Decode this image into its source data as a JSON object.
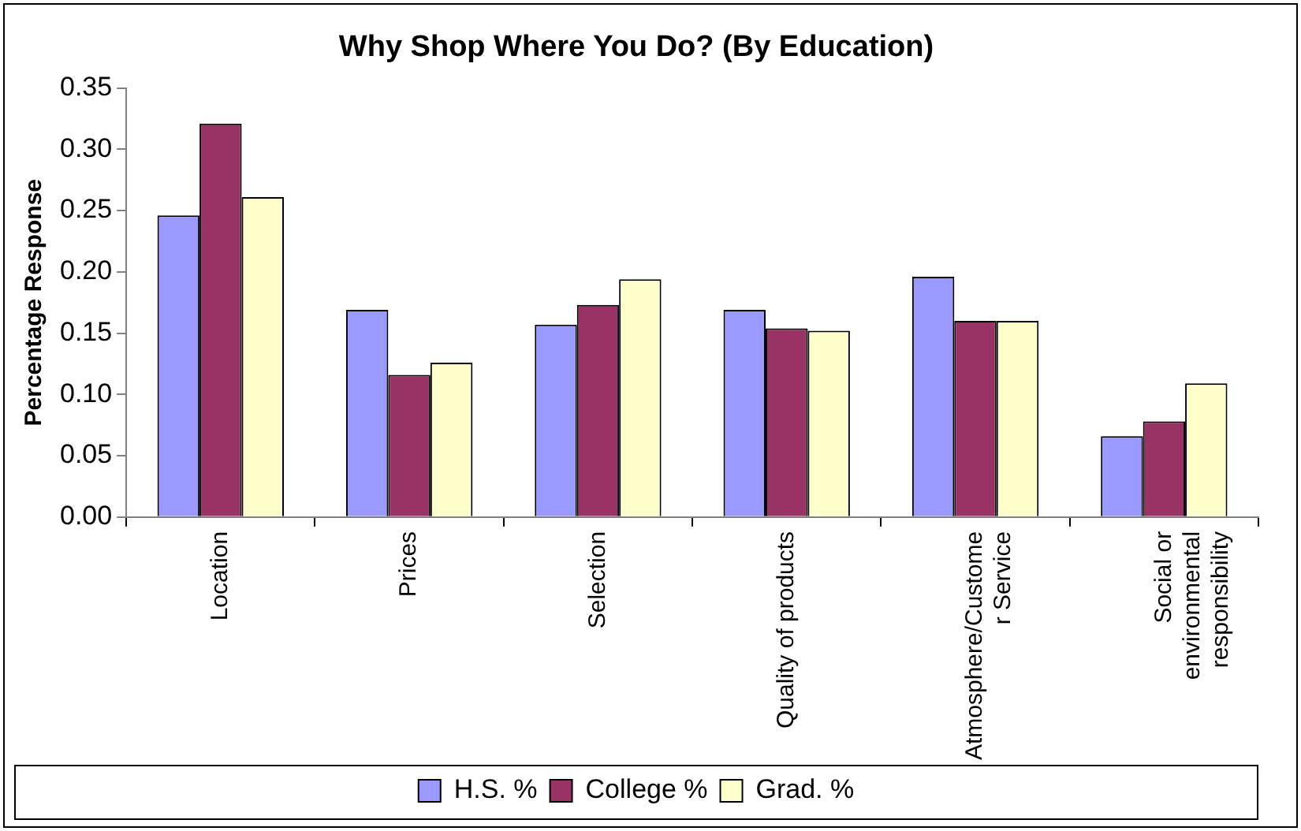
{
  "chart_data": {
    "type": "bar",
    "title": "Why Shop Where You Do? (By Education)",
    "ylabel": "Percentage Response",
    "categories": [
      "Location",
      "Prices",
      "Selection",
      "Quality of products",
      "Atmosphere/Customer Service",
      "Social or environmental responsibility"
    ],
    "series": [
      {
        "name": "H.S. %",
        "color": "#9999ff",
        "values": [
          0.246,
          0.169,
          0.157,
          0.169,
          0.196,
          0.066
        ]
      },
      {
        "name": "College %",
        "color": "#993366",
        "values": [
          0.321,
          0.116,
          0.173,
          0.154,
          0.16,
          0.078
        ]
      },
      {
        "name": "Grad. %",
        "color": "#ffffcc",
        "values": [
          0.261,
          0.126,
          0.194,
          0.152,
          0.16,
          0.109
        ]
      }
    ],
    "ylim": [
      0,
      0.35
    ],
    "yticks": [
      {
        "value": 0,
        "label": "0.00"
      },
      {
        "value": 0.05,
        "label": "0.05"
      },
      {
        "value": 0.1,
        "label": "0.10"
      },
      {
        "value": 0.15,
        "label": "0.15"
      },
      {
        "value": 0.2,
        "label": "0.20"
      },
      {
        "value": 0.25,
        "label": "0.25"
      },
      {
        "value": 0.3,
        "label": "0.30"
      },
      {
        "value": 0.35,
        "label": "0.35"
      }
    ],
    "grid": false,
    "legend": "bottom"
  }
}
